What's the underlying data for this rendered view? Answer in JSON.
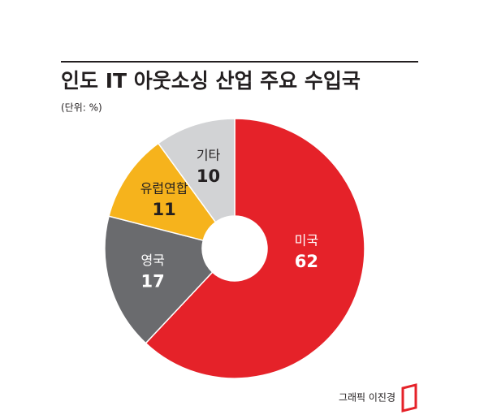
{
  "chart_data": {
    "type": "donut",
    "title": "인도 IT 아웃소싱 산업 주요 수입국",
    "subtitle": "(단위: %)",
    "categories": [
      "미국",
      "영국",
      "유럽연합",
      "기타"
    ],
    "values": [
      62,
      17,
      11,
      10
    ],
    "colors": [
      "#e52229",
      "#6a6b6e",
      "#f6b31c",
      "#d2d3d5"
    ],
    "label_colors": [
      "#ffffff",
      "#ffffff",
      "#231f20",
      "#231f20"
    ],
    "credit": "그래픽 이진경"
  }
}
